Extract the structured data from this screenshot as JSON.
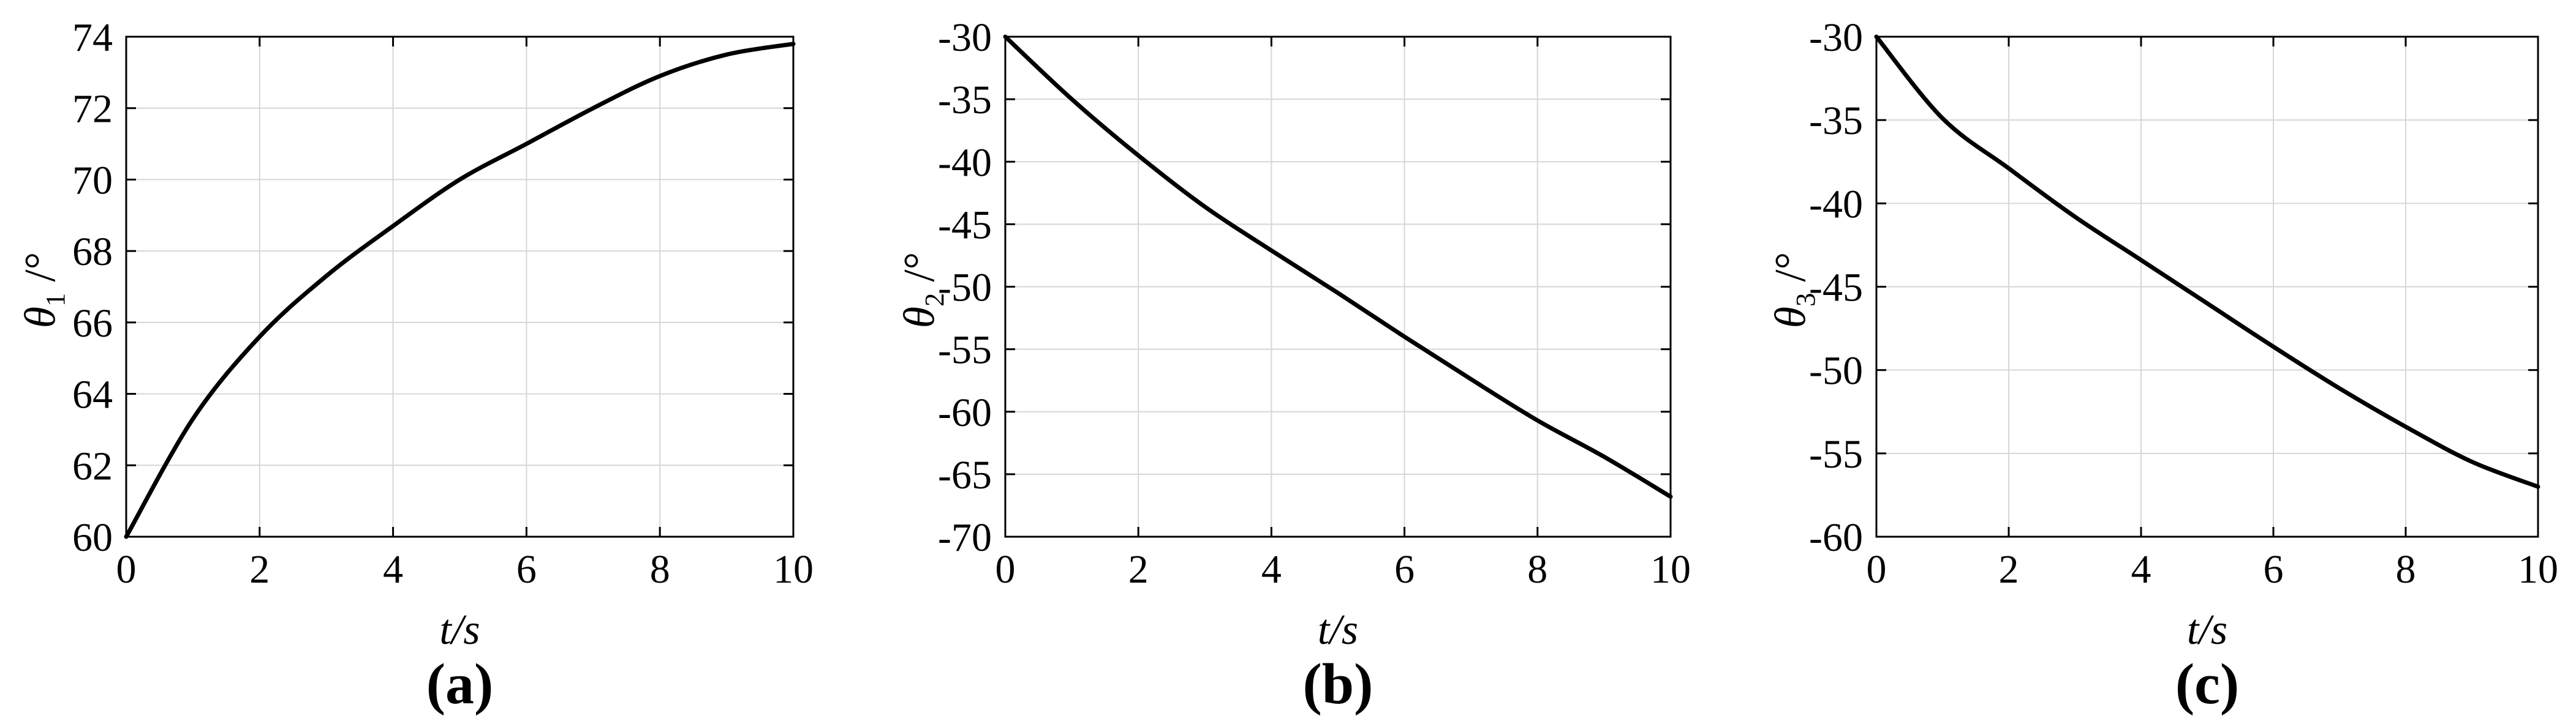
{
  "figure": {
    "background": "#ffffff",
    "grid_color": "#d6d6d6",
    "axis_color": "#000000",
    "text_color": "#000000"
  },
  "chart_data": [
    {
      "type": "line",
      "panel": "a",
      "caption": "(a)",
      "xlabel": "t/s",
      "ylabel": "θ_1 /°",
      "ylabel_symbol": "θ",
      "ylabel_sub": "1",
      "ylabel_unit": " /°",
      "x": [
        0,
        1,
        2,
        3,
        4,
        5,
        6,
        7,
        8,
        9,
        10
      ],
      "values": [
        60.0,
        63.3,
        65.6,
        67.3,
        68.7,
        70.0,
        71.0,
        72.0,
        72.9,
        73.5,
        73.8
      ],
      "xlim": [
        0,
        10
      ],
      "ylim": [
        60,
        74
      ],
      "x_ticks": [
        0,
        2,
        4,
        6,
        8,
        10
      ],
      "y_ticks": [
        60,
        62,
        64,
        66,
        68,
        70,
        72,
        74
      ],
      "grid": true,
      "legend": null,
      "line_color": "#000000",
      "line_width": 7
    },
    {
      "type": "line",
      "panel": "b",
      "caption": "(b)",
      "xlabel": "t/s",
      "ylabel": "θ_2 /°",
      "ylabel_symbol": "θ",
      "ylabel_sub": "2",
      "ylabel_unit": " /°",
      "x": [
        0,
        1,
        2,
        3,
        4,
        5,
        6,
        7,
        8,
        9,
        10
      ],
      "values": [
        -30.0,
        -35.0,
        -39.5,
        -43.6,
        -47.1,
        -50.5,
        -54.0,
        -57.4,
        -60.7,
        -63.6,
        -66.8
      ],
      "xlim": [
        0,
        10
      ],
      "ylim": [
        -70,
        -30
      ],
      "x_ticks": [
        0,
        2,
        4,
        6,
        8,
        10
      ],
      "y_ticks": [
        -70,
        -65,
        -60,
        -55,
        -50,
        -45,
        -40,
        -35,
        -30
      ],
      "grid": true,
      "legend": null,
      "line_color": "#000000",
      "line_width": 7
    },
    {
      "type": "line",
      "panel": "c",
      "caption": "(c)",
      "xlabel": "t/s",
      "ylabel": "θ_3 /°",
      "ylabel_symbol": "θ",
      "ylabel_sub": "3",
      "ylabel_unit": " /°",
      "x": [
        0,
        1,
        2,
        3,
        4,
        5,
        6,
        7,
        8,
        9,
        10
      ],
      "values": [
        -30.0,
        -34.9,
        -37.9,
        -40.8,
        -43.4,
        -46.0,
        -48.6,
        -51.1,
        -53.4,
        -55.5,
        -57.0
      ],
      "xlim": [
        0,
        10
      ],
      "ylim": [
        -60,
        -30
      ],
      "x_ticks": [
        0,
        2,
        4,
        6,
        8,
        10
      ],
      "y_ticks": [
        -60,
        -55,
        -50,
        -45,
        -40,
        -35,
        -30
      ],
      "grid": true,
      "legend": null,
      "line_color": "#000000",
      "line_width": 7
    }
  ]
}
